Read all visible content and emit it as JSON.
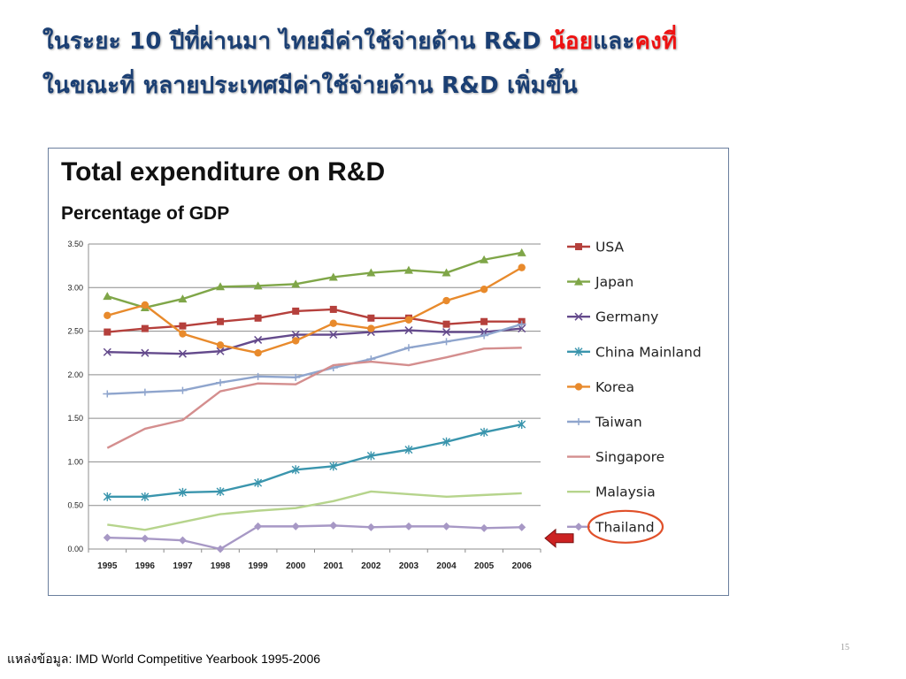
{
  "slide": {
    "title_line1": {
      "part1": "ในระยะ 10 ปีที่ผ่านมา ไทยมีค่าใช้จ่ายด้าน R&D ",
      "part2": "น้อย",
      "part3": "และ",
      "part4": "คงที่"
    },
    "title_line2": "ในขณะที่ หลายประเทศมีค่าใช้จ่ายด้าน R&D เพิ่มขึ้น",
    "source": "แหล่งข้อมูล: IMD World Competitive Yearbook 1995-2006",
    "page_number": "15",
    "colors": {
      "title": "#1b3f73",
      "emphasis": "#ee1111",
      "highlight_circle": "#e0502a",
      "arrow": "#cc2222"
    },
    "annotations": {
      "thailand_circle_icon": "ellipse-highlight",
      "thailand_arrow_icon": "left-arrow"
    }
  },
  "chart_data": {
    "type": "line",
    "title": "Total expenditure on R&D",
    "subtitle": "Percentage of GDP",
    "xlabel": "",
    "ylabel": "",
    "categories": [
      "1995",
      "1996",
      "1997",
      "1998",
      "1999",
      "2000",
      "2001",
      "2002",
      "2003",
      "2004",
      "2005",
      "2006"
    ],
    "y_ticks": [
      "0.00",
      "0.50",
      "1.00",
      "1.50",
      "2.00",
      "2.50",
      "3.00",
      "3.50"
    ],
    "ylim": [
      0,
      3.5
    ],
    "grid": "horizontal",
    "legend_position": "right",
    "series": [
      {
        "name": "USA",
        "color": "#b5403c",
        "marker": "square",
        "values": [
          2.49,
          2.53,
          2.56,
          2.61,
          2.65,
          2.73,
          2.75,
          2.65,
          2.65,
          2.58,
          2.61,
          2.61
        ]
      },
      {
        "name": "Japan",
        "color": "#7fa648",
        "marker": "triangle",
        "values": [
          2.9,
          2.77,
          2.87,
          3.01,
          3.02,
          3.04,
          3.12,
          3.17,
          3.2,
          3.17,
          3.32,
          3.4
        ]
      },
      {
        "name": "Germany",
        "color": "#644a8c",
        "marker": "x",
        "values": [
          2.26,
          2.25,
          2.24,
          2.27,
          2.4,
          2.46,
          2.46,
          2.49,
          2.51,
          2.49,
          2.49,
          2.53
        ]
      },
      {
        "name": "China Mainland",
        "color": "#3a95ad",
        "marker": "star",
        "values": [
          0.6,
          0.6,
          0.65,
          0.66,
          0.76,
          0.91,
          0.95,
          1.07,
          1.14,
          1.23,
          1.34,
          1.43
        ]
      },
      {
        "name": "Korea",
        "color": "#e88a2c",
        "marker": "circle",
        "values": [
          2.68,
          2.8,
          2.47,
          2.34,
          2.25,
          2.39,
          2.59,
          2.53,
          2.63,
          2.85,
          2.98,
          3.23
        ]
      },
      {
        "name": "Taiwan",
        "color": "#8fa5cd",
        "marker": "plus",
        "values": [
          1.78,
          1.8,
          1.82,
          1.91,
          1.98,
          1.97,
          2.08,
          2.18,
          2.31,
          2.38,
          2.45,
          2.58
        ]
      },
      {
        "name": "Singapore",
        "color": "#d48e8e",
        "marker": "none",
        "values": [
          1.16,
          1.38,
          1.48,
          1.81,
          1.9,
          1.89,
          2.11,
          2.15,
          2.11,
          2.2,
          2.3,
          2.31
        ]
      },
      {
        "name": "Malaysia",
        "color": "#b6d48c",
        "marker": "none",
        "values": [
          0.28,
          0.22,
          0.31,
          0.4,
          0.44,
          0.47,
          0.55,
          0.66,
          0.63,
          0.6,
          0.62,
          0.64
        ]
      },
      {
        "name": "Thailand",
        "color": "#a798c5",
        "marker": "diamond",
        "values": [
          0.13,
          0.12,
          0.1,
          0.0,
          0.26,
          0.26,
          0.27,
          0.25,
          0.26,
          0.26,
          0.24,
          0.25
        ]
      }
    ]
  }
}
